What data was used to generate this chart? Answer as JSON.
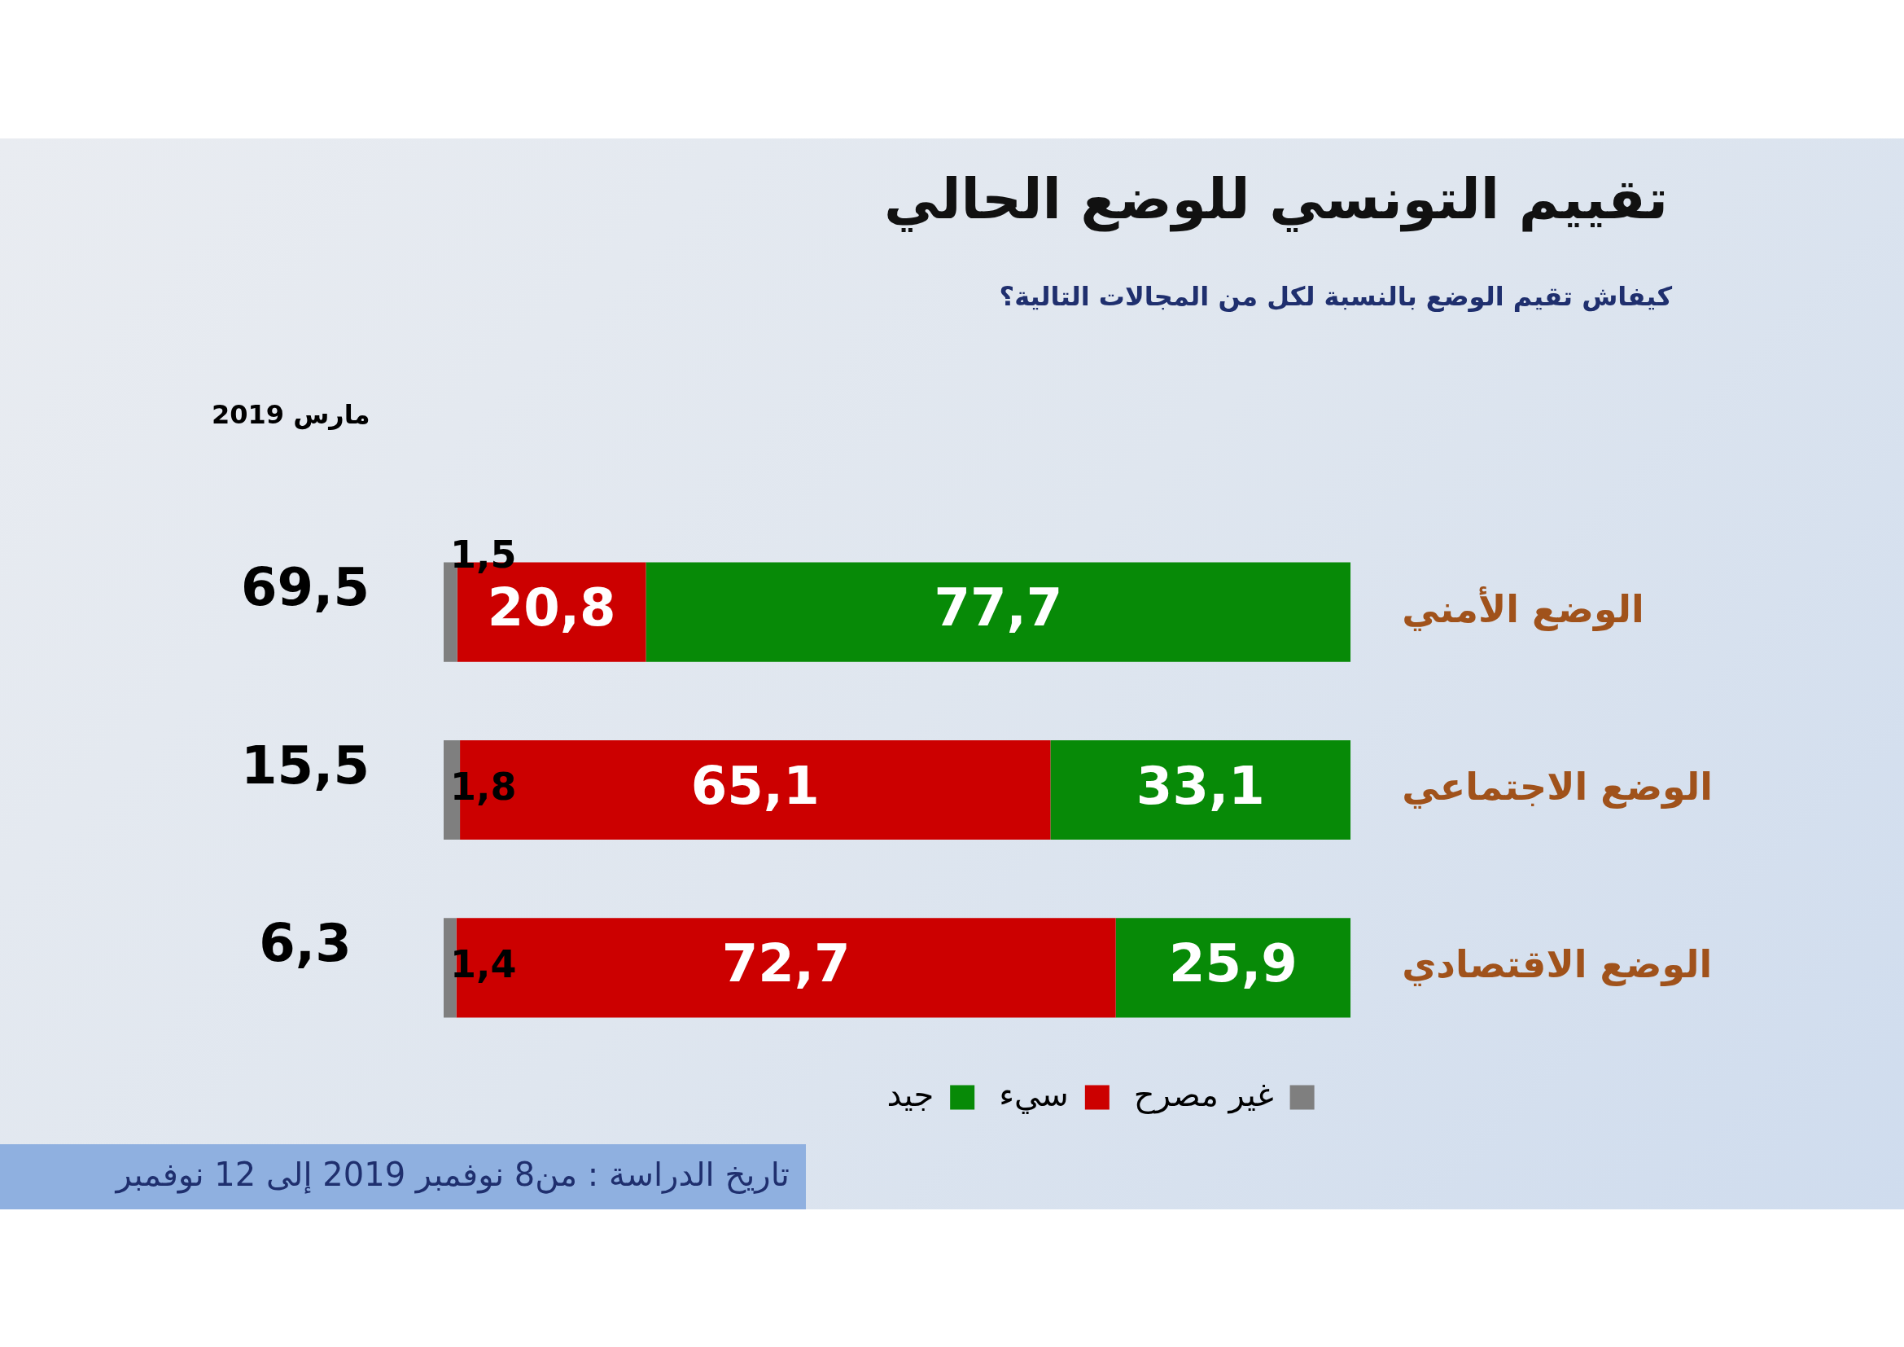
{
  "chart_data": {
    "type": "bar",
    "orientation": "horizontal",
    "stacked": true,
    "title": "تقييم التونسي للوضع الحالي",
    "subtitle": "كيفاش تقيم الوضع بالنسبة لكل من المجالات التالية؟",
    "categories": [
      "الوضع الأمني",
      "الوضع الاجتماعي",
      "الوضع الاقتصادي"
    ],
    "series": [
      {
        "name": "غير مصرح",
        "color": "#7f7f7f",
        "values": [
          1.5,
          1.8,
          1.4
        ],
        "value_labels": [
          "1,5",
          "1,8",
          "1,4"
        ]
      },
      {
        "name": "سيء",
        "color": "#cc0000",
        "values": [
          20.8,
          65.1,
          72.7
        ],
        "value_labels": [
          "20,8",
          "65,1",
          "72,7"
        ]
      },
      {
        "name": "جيد",
        "color": "#078a07",
        "values": [
          77.7,
          33.1,
          25.9
        ],
        "value_labels": [
          "77,7",
          "33,1",
          "25,9"
        ]
      }
    ],
    "xlim": [
      0,
      100
    ],
    "tick_labels": "y",
    "legend": "bottom",
    "annotations": [
      "مارس 2019",
      "69,5",
      "15,5",
      "6,3",
      "تاريخ الدراسة : من8  نوفمبر 2019 إلى 12 نوفمبر"
    ]
  }
}
